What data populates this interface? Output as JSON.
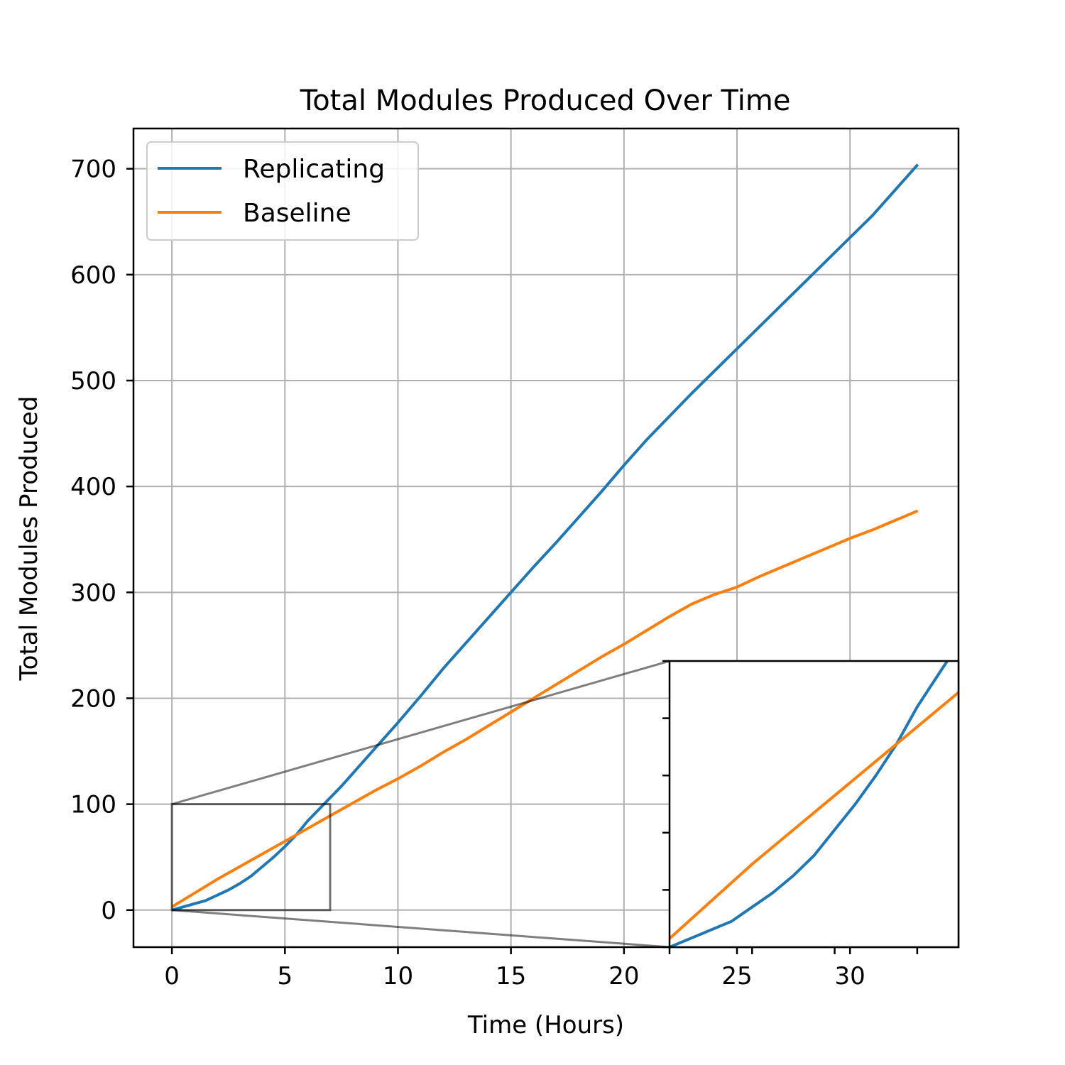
{
  "chart_data": {
    "type": "line",
    "title": "Total Modules Produced Over Time",
    "xlabel": "Time (Hours)",
    "ylabel": "Total Modules Produced",
    "xlim": [
      -1.7,
      34.8
    ],
    "ylim": [
      -35,
      738
    ],
    "xticks": [
      0,
      5,
      10,
      15,
      20,
      25,
      30
    ],
    "yticks": [
      0,
      100,
      200,
      300,
      400,
      500,
      600,
      700
    ],
    "grid": true,
    "legend": "upper-left",
    "colors": {
      "Replicating": "#1f77b4",
      "Baseline": "#ff7f0e"
    },
    "series": [
      {
        "name": "Replicating",
        "x": [
          0,
          0.5,
          1,
          1.5,
          2,
          2.5,
          3,
          3.5,
          4,
          4.5,
          5,
          5.5,
          6,
          6.5,
          7,
          7.5,
          8,
          9,
          10,
          11,
          12,
          13,
          14,
          15,
          16,
          17,
          18,
          19,
          20,
          21,
          22,
          23,
          24,
          25,
          26,
          27,
          28,
          29,
          30,
          31,
          32,
          33
        ],
        "values": [
          0,
          3,
          6,
          9,
          14,
          19,
          25,
          32,
          41,
          50,
          60,
          71,
          84,
          95,
          106,
          117,
          129,
          153,
          177,
          202,
          228,
          252,
          276,
          300,
          324,
          347,
          371,
          395,
          420,
          444,
          466,
          488,
          509,
          530,
          551,
          572,
          593,
          614,
          635,
          656,
          680,
          704
        ]
      },
      {
        "name": "Baseline",
        "x": [
          0,
          1,
          2,
          3,
          4,
          5,
          6,
          7,
          8,
          9,
          10,
          11,
          12,
          13,
          14,
          15,
          16,
          17,
          18,
          19,
          20,
          21,
          22,
          23,
          24,
          25,
          26,
          27,
          28,
          29,
          30,
          31,
          32,
          33
        ],
        "values": [
          3,
          16,
          29,
          41,
          53,
          65,
          77,
          89,
          101,
          113,
          124,
          136,
          149,
          161,
          174,
          187,
          200,
          213,
          226,
          239,
          251,
          264,
          277,
          289,
          298,
          305,
          315,
          324,
          333,
          342,
          351,
          359,
          368,
          377
        ]
      }
    ],
    "inset": {
      "xlim": [
        0,
        7
      ],
      "ylim": [
        0,
        100
      ]
    }
  }
}
